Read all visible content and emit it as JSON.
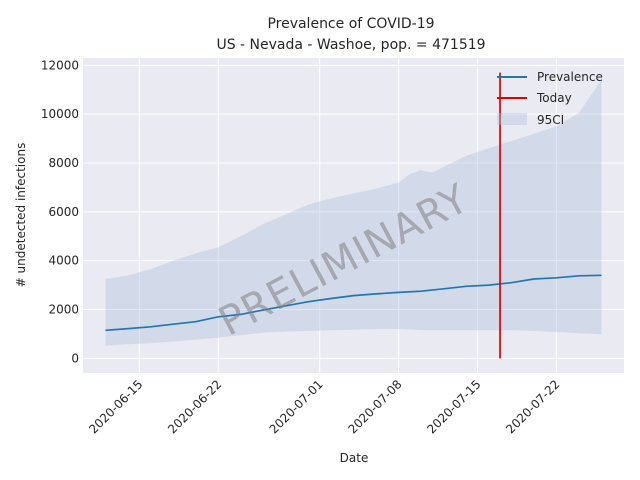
{
  "chart_data": {
    "type": "line",
    "title": "Prevalence of COVID-19",
    "subtitle": "US - Nevada - Washoe, pop. = 471519",
    "xlabel": "Date",
    "ylabel": "# undetected infections",
    "xlim": [
      "2020-06-10",
      "2020-07-28"
    ],
    "ylim": [
      -600,
      12300
    ],
    "x_ticks": [
      "2020-06-15",
      "2020-06-22",
      "2020-07-01",
      "2020-07-08",
      "2020-07-15",
      "2020-07-22"
    ],
    "y_ticks": [
      0,
      2000,
      4000,
      6000,
      8000,
      10000,
      12000
    ],
    "y_tick_labels": [
      "0",
      "2000",
      "4000",
      "6000",
      "8000",
      "10000",
      "12000"
    ],
    "grid": true,
    "legend": "top-right",
    "watermark": "PRELIMINARY",
    "colors": {
      "prevalence": "#1f77b4",
      "today": "#e00000",
      "ci": "#b0c4de",
      "background": "#eaeaf2",
      "grid": "#ffffff"
    },
    "series": [
      {
        "name": "Prevalence",
        "x": [
          "2020-06-12",
          "2020-06-14",
          "2020-06-16",
          "2020-06-18",
          "2020-06-20",
          "2020-06-22",
          "2020-06-24",
          "2020-06-26",
          "2020-06-28",
          "2020-06-30",
          "2020-07-02",
          "2020-07-04",
          "2020-07-06",
          "2020-07-08",
          "2020-07-10",
          "2020-07-12",
          "2020-07-14",
          "2020-07-16",
          "2020-07-18",
          "2020-07-20",
          "2020-07-22",
          "2020-07-24",
          "2020-07-26"
        ],
        "values": [
          1150,
          1220,
          1290,
          1400,
          1500,
          1700,
          1800,
          1980,
          2150,
          2320,
          2450,
          2570,
          2640,
          2700,
          2750,
          2850,
          2950,
          3000,
          3100,
          3250,
          3300,
          3380,
          3400
        ]
      },
      {
        "name": "95CI",
        "x": [
          "2020-06-12",
          "2020-06-14",
          "2020-06-16",
          "2020-06-18",
          "2020-06-20",
          "2020-06-22",
          "2020-06-24",
          "2020-06-26",
          "2020-06-28",
          "2020-06-30",
          "2020-07-02",
          "2020-07-04",
          "2020-07-06",
          "2020-07-08",
          "2020-07-09",
          "2020-07-10",
          "2020-07-11",
          "2020-07-12",
          "2020-07-14",
          "2020-07-16",
          "2020-07-18",
          "2020-07-20",
          "2020-07-22",
          "2020-07-24",
          "2020-07-26"
        ],
        "upper": [
          3250,
          3400,
          3650,
          4000,
          4300,
          4550,
          5000,
          5500,
          5900,
          6300,
          6550,
          6750,
          6950,
          7200,
          7550,
          7700,
          7600,
          7850,
          8300,
          8600,
          8900,
          9200,
          9500,
          10050,
          11400
        ],
        "lower": [
          520,
          580,
          620,
          690,
          760,
          850,
          950,
          1050,
          1100,
          1120,
          1150,
          1170,
          1200,
          1200,
          1180,
          1160,
          1150,
          1150,
          1150,
          1150,
          1150,
          1120,
          1080,
          1030,
          980
        ]
      }
    ],
    "today": {
      "name": "Today",
      "x": "2020-07-17",
      "y_range": [
        0,
        11700
      ]
    }
  }
}
